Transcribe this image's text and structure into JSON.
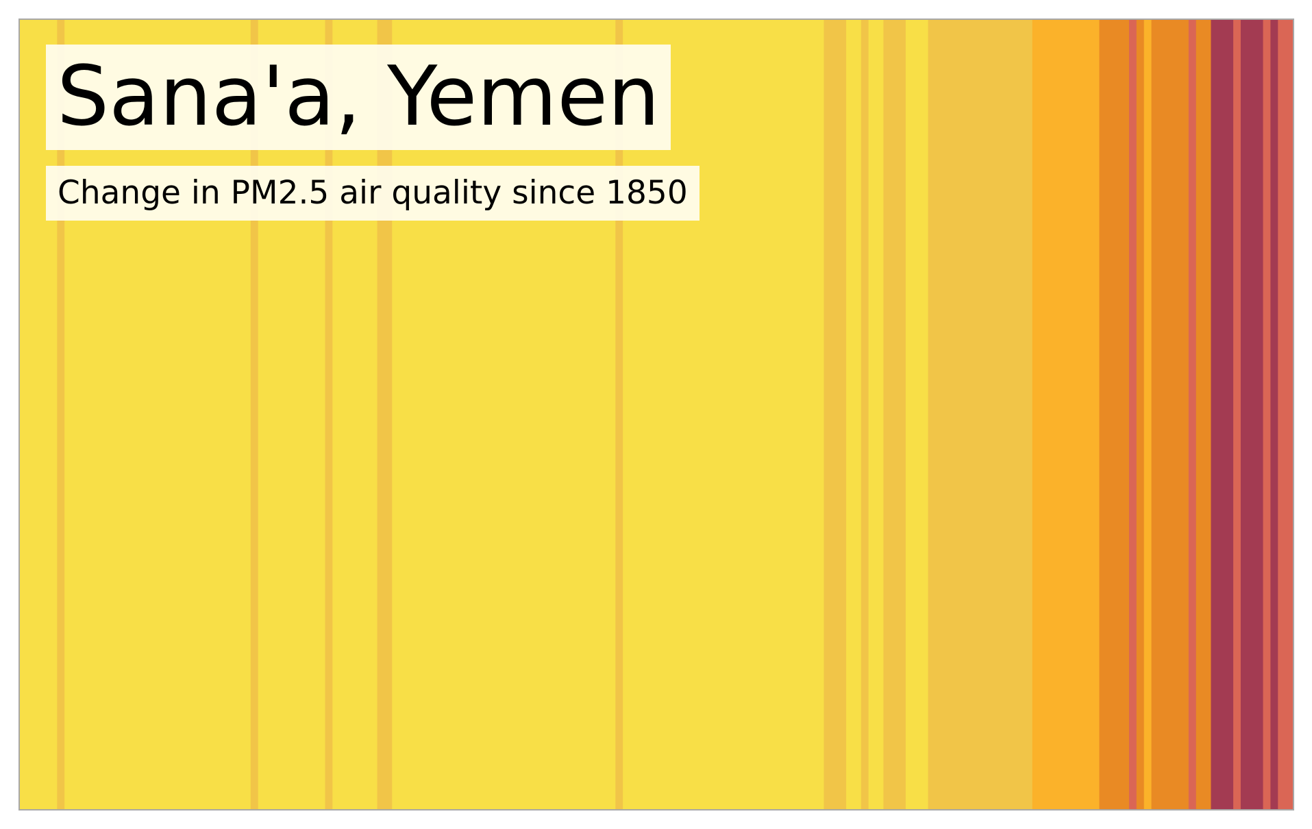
{
  "chart_data": {
    "type": "heatmap",
    "title": "Sana'a, Yemen",
    "subtitle": "Change in PM2.5 air quality since 1850",
    "x_start": 1850,
    "x_end": 2021,
    "colors": {
      "c1": "#f8df47",
      "c2": "#f1c548",
      "c3": "#fbb22a",
      "c4": "#e98a24",
      "c5": "#da6655",
      "c6": "#a33b52"
    },
    "stripes": [
      {
        "start": 1850,
        "end": 1855,
        "color": "c1"
      },
      {
        "start": 1855,
        "end": 1856,
        "color": "c2"
      },
      {
        "start": 1856,
        "end": 1881,
        "color": "c1"
      },
      {
        "start": 1881,
        "end": 1882,
        "color": "c2"
      },
      {
        "start": 1882,
        "end": 1891,
        "color": "c1"
      },
      {
        "start": 1891,
        "end": 1892,
        "color": "c2"
      },
      {
        "start": 1892,
        "end": 1898,
        "color": "c1"
      },
      {
        "start": 1898,
        "end": 1900,
        "color": "c2"
      },
      {
        "start": 1900,
        "end": 1930,
        "color": "c1"
      },
      {
        "start": 1930,
        "end": 1931,
        "color": "c2"
      },
      {
        "start": 1931,
        "end": 1958,
        "color": "c1"
      },
      {
        "start": 1958,
        "end": 1961,
        "color": "c2"
      },
      {
        "start": 1961,
        "end": 1963,
        "color": "c1"
      },
      {
        "start": 1963,
        "end": 1964,
        "color": "c2"
      },
      {
        "start": 1964,
        "end": 1966,
        "color": "c1"
      },
      {
        "start": 1966,
        "end": 1969,
        "color": "c2"
      },
      {
        "start": 1969,
        "end": 1972,
        "color": "c1"
      },
      {
        "start": 1972,
        "end": 1986,
        "color": "c2"
      },
      {
        "start": 1986,
        "end": 1995,
        "color": "c3"
      },
      {
        "start": 1995,
        "end": 1999,
        "color": "c4"
      },
      {
        "start": 1999,
        "end": 2000,
        "color": "c5"
      },
      {
        "start": 2000,
        "end": 2001,
        "color": "c4"
      },
      {
        "start": 2001,
        "end": 2002,
        "color": "c3"
      },
      {
        "start": 2002,
        "end": 2007,
        "color": "c4"
      },
      {
        "start": 2007,
        "end": 2008,
        "color": "c5"
      },
      {
        "start": 2008,
        "end": 2010,
        "color": "c4"
      },
      {
        "start": 2010,
        "end": 2013,
        "color": "c6"
      },
      {
        "start": 2013,
        "end": 2014,
        "color": "c5"
      },
      {
        "start": 2014,
        "end": 2017,
        "color": "c6"
      },
      {
        "start": 2017,
        "end": 2018,
        "color": "c5"
      },
      {
        "start": 2018,
        "end": 2019,
        "color": "c6"
      },
      {
        "start": 2019,
        "end": 2021,
        "color": "c5"
      }
    ]
  }
}
